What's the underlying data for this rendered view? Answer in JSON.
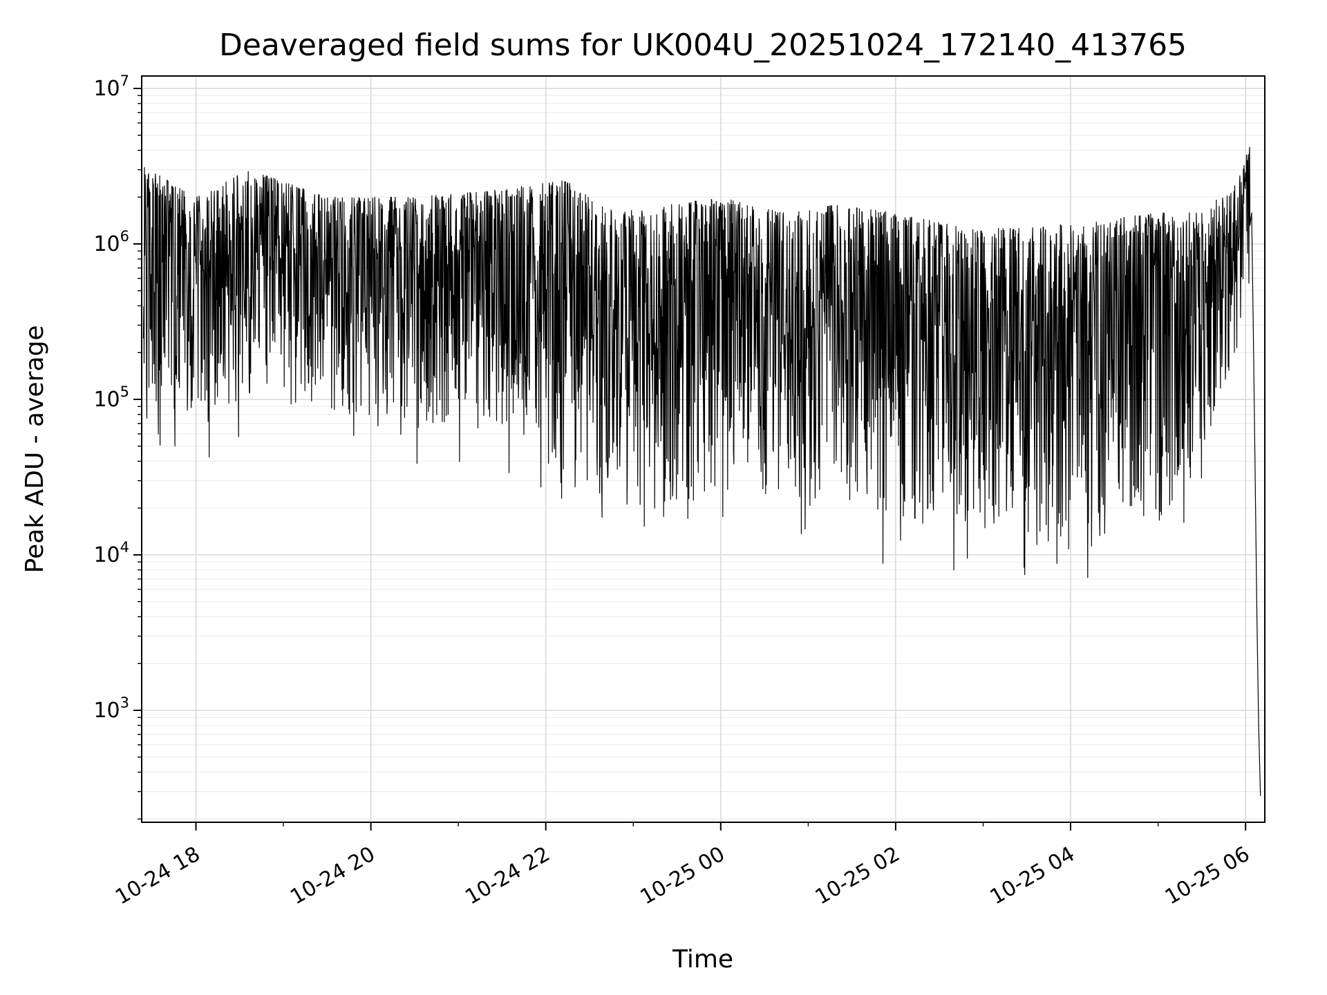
{
  "chart_data": {
    "type": "line",
    "title": "Deaveraged field sums for UK004U_20251024_172140_413765",
    "xlabel": "Time",
    "ylabel": "Peak ADU - average",
    "background": "#ffffff",
    "axes_color": "#000000",
    "grid": {
      "show": true,
      "major_color": "#d9d9d9",
      "minor_color": "#ebebeb"
    },
    "x_axis": {
      "unit": "hours-since-10-24-00",
      "range_hours": [
        17.38,
        30.22
      ],
      "ticks": [
        {
          "hour": 18,
          "label": "10-24 18"
        },
        {
          "hour": 20,
          "label": "10-24 20"
        },
        {
          "hour": 22,
          "label": "10-24 22"
        },
        {
          "hour": 24,
          "label": "10-25 00"
        },
        {
          "hour": 26,
          "label": "10-25 02"
        },
        {
          "hour": 28,
          "label": "10-25 04"
        },
        {
          "hour": 30,
          "label": "10-25 06"
        }
      ],
      "minor_tick_hours": [
        19,
        21,
        23,
        25,
        27,
        29
      ],
      "tick_label_rotation_deg": -30
    },
    "y_axis": {
      "scale": "log",
      "range_log10": [
        2.28,
        7.08
      ],
      "major_tick_exponents": [
        3,
        4,
        5,
        6,
        7
      ],
      "minor_mantissas": [
        2,
        3,
        4,
        5,
        6,
        7,
        8,
        9
      ]
    },
    "series": [
      {
        "name": "deaveraged-field-sums",
        "color": "#000000",
        "line_width": 1.2,
        "synthesis": {
          "seed": 20251024,
          "n_points": 3200,
          "bias_exponent": 1.7,
          "deep_spike_probability": 0.012,
          "deep_spike_extra_log": 0.3,
          "envelope_log10": [
            [
              17.4,
              5.0,
              6.5
            ],
            [
              18.0,
              4.9,
              6.3
            ],
            [
              18.6,
              5.0,
              6.48
            ],
            [
              19.5,
              4.9,
              6.3
            ],
            [
              20.5,
              4.85,
              6.3
            ],
            [
              21.5,
              4.8,
              6.35
            ],
            [
              22.2,
              4.6,
              6.42
            ],
            [
              22.8,
              4.3,
              6.2
            ],
            [
              23.4,
              4.3,
              6.25
            ],
            [
              24.0,
              4.4,
              6.3
            ],
            [
              24.7,
              4.3,
              6.2
            ],
            [
              25.3,
              4.4,
              6.25
            ],
            [
              26.0,
              4.2,
              6.2
            ],
            [
              26.8,
              4.2,
              6.1
            ],
            [
              27.5,
              4.05,
              6.1
            ],
            [
              28.3,
              4.15,
              6.15
            ],
            [
              29.0,
              4.2,
              6.2
            ],
            [
              29.5,
              4.6,
              6.2
            ],
            [
              29.9,
              5.3,
              6.4
            ],
            [
              30.05,
              5.9,
              6.66
            ]
          ],
          "final_drop_log10": [
            [
              30.07,
              6.2
            ],
            [
              30.09,
              5.4
            ],
            [
              30.11,
              4.5
            ],
            [
              30.13,
              3.6
            ],
            [
              30.15,
              2.9
            ],
            [
              30.17,
              2.45
            ]
          ]
        }
      }
    ]
  }
}
